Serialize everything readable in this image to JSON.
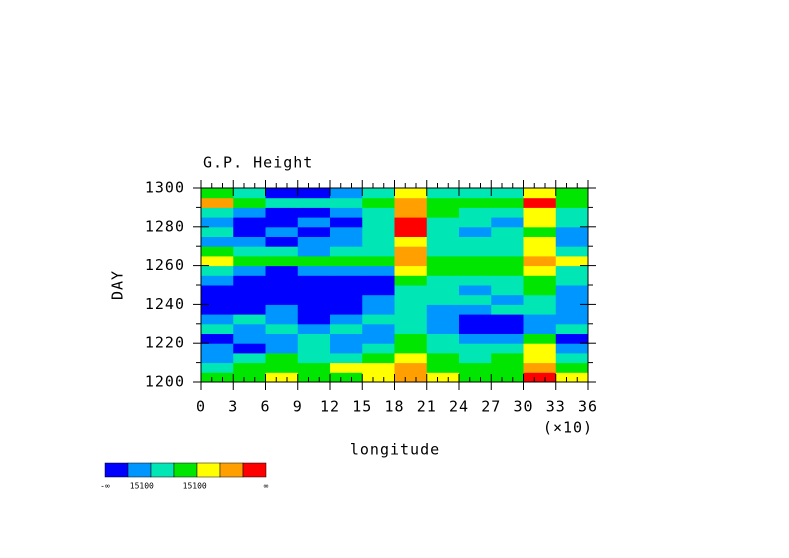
{
  "chart_data": {
    "type": "heatmap",
    "title": "G.P. Height",
    "xlabel": "longitude",
    "x_multiplier": "(×10)",
    "ylabel": "DAY",
    "xlim": [
      0,
      36
    ],
    "ylim": [
      1200,
      1300
    ],
    "xticks": [
      0,
      3,
      6,
      9,
      12,
      15,
      18,
      21,
      24,
      27,
      30,
      33,
      36
    ],
    "yticks": [
      1200,
      1220,
      1240,
      1260,
      1280,
      1300
    ],
    "colorbar": {
      "colors": [
        "#0000ff",
        "#0096ff",
        "#00e6b4",
        "#00e600",
        "#ffff00",
        "#ffa000",
        "#ff0000"
      ],
      "labels": [
        "-∞",
        "15100",
        "15100",
        "∞"
      ]
    },
    "z": [
      [
        3,
        3,
        4,
        3,
        3,
        4,
        5,
        4,
        3,
        3,
        6,
        4
      ],
      [
        2,
        3,
        3,
        3,
        4,
        4,
        5,
        3,
        3,
        3,
        5,
        3
      ],
      [
        1,
        2,
        3,
        2,
        2,
        3,
        4,
        3,
        2,
        3,
        4,
        2
      ],
      [
        1,
        0,
        1,
        2,
        1,
        2,
        3,
        2,
        2,
        2,
        4,
        1
      ],
      [
        0,
        1,
        1,
        2,
        1,
        1,
        3,
        2,
        1,
        1,
        3,
        0
      ],
      [
        2,
        1,
        2,
        1,
        2,
        1,
        2,
        1,
        0,
        0,
        1,
        2
      ],
      [
        1,
        2,
        1,
        0,
        1,
        2,
        2,
        1,
        0,
        0,
        1,
        1
      ],
      [
        0,
        0,
        1,
        0,
        0,
        1,
        2,
        1,
        1,
        2,
        2,
        1
      ],
      [
        0,
        0,
        0,
        0,
        0,
        1,
        2,
        2,
        2,
        1,
        2,
        1
      ],
      [
        0,
        0,
        0,
        0,
        0,
        0,
        2,
        2,
        1,
        2,
        3,
        1
      ],
      [
        1,
        0,
        0,
        0,
        0,
        0,
        3,
        2,
        2,
        2,
        3,
        2
      ],
      [
        2,
        1,
        0,
        1,
        1,
        1,
        4,
        3,
        3,
        3,
        4,
        2
      ],
      [
        4,
        3,
        3,
        3,
        3,
        3,
        5,
        3,
        3,
        3,
        5,
        4
      ],
      [
        3,
        2,
        2,
        1,
        2,
        2,
        5,
        2,
        2,
        2,
        4,
        2
      ],
      [
        1,
        1,
        0,
        1,
        1,
        2,
        4,
        2,
        2,
        2,
        4,
        1
      ],
      [
        2,
        0,
        1,
        0,
        1,
        2,
        6,
        2,
        1,
        2,
        3,
        1
      ],
      [
        1,
        0,
        0,
        1,
        0,
        2,
        6,
        2,
        2,
        1,
        4,
        2
      ],
      [
        2,
        1,
        0,
        0,
        1,
        2,
        5,
        3,
        2,
        2,
        4,
        2
      ],
      [
        5,
        3,
        2,
        2,
        2,
        3,
        5,
        3,
        3,
        3,
        6,
        3
      ],
      [
        3,
        2,
        0,
        0,
        1,
        2,
        4,
        2,
        2,
        2,
        4,
        3
      ]
    ]
  }
}
